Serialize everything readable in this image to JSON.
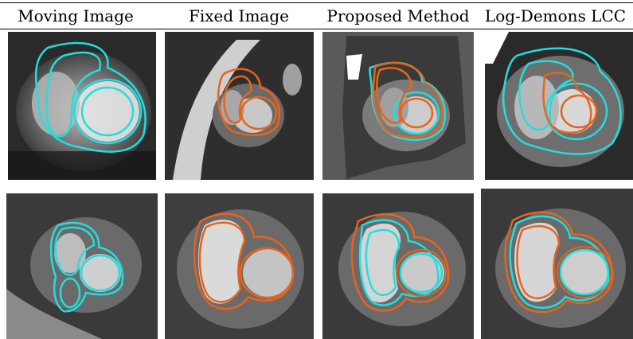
{
  "figure": {
    "columns": [
      {
        "title": "Moving Image"
      },
      {
        "title": "Fixed Image"
      },
      {
        "title": "Proposed Method"
      },
      {
        "title": "Log-Demons LCC"
      }
    ]
  },
  "colors": {
    "moving_contour": "#22dede",
    "fixed_contour": "#e8641c"
  }
}
